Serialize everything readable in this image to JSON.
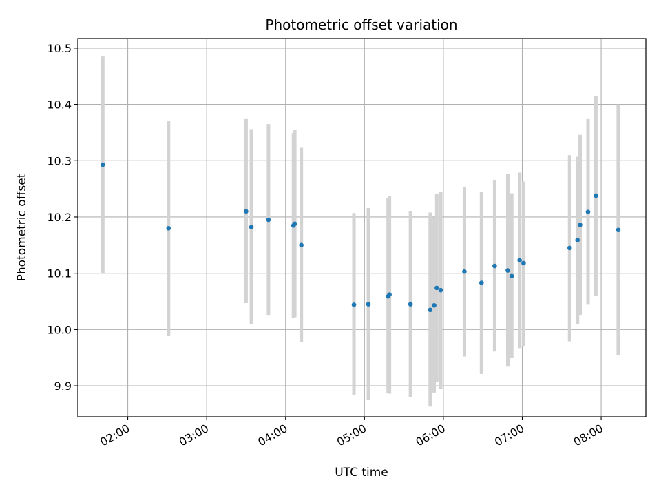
{
  "chart_data": {
    "type": "scatter",
    "title": "Photometric offset variation",
    "xlabel": "UTC time",
    "ylabel": "Photometric offset",
    "grid": true,
    "xlim": [
      "01:22",
      "08:34"
    ],
    "ylim": [
      9.845,
      10.517
    ],
    "x_ticks": [
      "02:00",
      "03:00",
      "04:00",
      "05:00",
      "06:00",
      "07:00",
      "08:00"
    ],
    "y_ticks": [
      9.9,
      10.0,
      10.1,
      10.2,
      10.3,
      10.4,
      10.5
    ],
    "y_tick_labels": [
      "9.9",
      "10.0",
      "10.1",
      "10.2",
      "10.3",
      "10.4",
      "10.5"
    ],
    "marker_color": "#1f77b4",
    "errorbar_color": "#d3d3d3",
    "series": [
      {
        "points": [
          {
            "x": "01:41",
            "y": 10.293,
            "ylo": 10.1,
            "yhi": 10.485
          },
          {
            "x": "02:31",
            "y": 10.18,
            "ylo": 9.988,
            "yhi": 10.37
          },
          {
            "x": "03:30",
            "y": 10.21,
            "ylo": 10.047,
            "yhi": 10.374
          },
          {
            "x": "03:34",
            "y": 10.182,
            "ylo": 10.01,
            "yhi": 10.356
          },
          {
            "x": "03:47",
            "y": 10.195,
            "ylo": 10.026,
            "yhi": 10.365
          },
          {
            "x": "04:06",
            "y": 10.185,
            "ylo": 10.021,
            "yhi": 10.349
          },
          {
            "x": "04:07",
            "y": 10.188,
            "ylo": 10.022,
            "yhi": 10.355
          },
          {
            "x": "04:12",
            "y": 10.15,
            "ylo": 9.978,
            "yhi": 10.323
          },
          {
            "x": "04:52",
            "y": 10.044,
            "ylo": 9.883,
            "yhi": 10.207
          },
          {
            "x": "05:03",
            "y": 10.045,
            "ylo": 9.875,
            "yhi": 10.216
          },
          {
            "x": "05:18",
            "y": 10.059,
            "ylo": 9.887,
            "yhi": 10.233
          },
          {
            "x": "05:19",
            "y": 10.062,
            "ylo": 9.886,
            "yhi": 10.237
          },
          {
            "x": "05:35",
            "y": 10.045,
            "ylo": 9.88,
            "yhi": 10.211
          },
          {
            "x": "05:50",
            "y": 10.035,
            "ylo": 9.863,
            "yhi": 10.208
          },
          {
            "x": "05:53",
            "y": 10.043,
            "ylo": 9.888,
            "yhi": 10.199
          },
          {
            "x": "05:55",
            "y": 10.074,
            "ylo": 9.907,
            "yhi": 10.241
          },
          {
            "x": "05:58",
            "y": 10.07,
            "ylo": 9.895,
            "yhi": 10.245
          },
          {
            "x": "06:16",
            "y": 10.103,
            "ylo": 9.952,
            "yhi": 10.254
          },
          {
            "x": "06:29",
            "y": 10.083,
            "ylo": 9.921,
            "yhi": 10.245
          },
          {
            "x": "06:39",
            "y": 10.113,
            "ylo": 9.961,
            "yhi": 10.265
          },
          {
            "x": "06:49",
            "y": 10.105,
            "ylo": 9.934,
            "yhi": 10.277
          },
          {
            "x": "06:52",
            "y": 10.095,
            "ylo": 9.949,
            "yhi": 10.242
          },
          {
            "x": "06:58",
            "y": 10.123,
            "ylo": 9.967,
            "yhi": 10.279
          },
          {
            "x": "07:01",
            "y": 10.118,
            "ylo": 9.971,
            "yhi": 10.263
          },
          {
            "x": "07:36",
            "y": 10.145,
            "ylo": 9.979,
            "yhi": 10.31
          },
          {
            "x": "07:42",
            "y": 10.159,
            "ylo": 10.01,
            "yhi": 10.307
          },
          {
            "x": "07:44",
            "y": 10.186,
            "ylo": 10.026,
            "yhi": 10.346
          },
          {
            "x": "07:50",
            "y": 10.209,
            "ylo": 10.044,
            "yhi": 10.374
          },
          {
            "x": "07:56",
            "y": 10.238,
            "ylo": 10.06,
            "yhi": 10.415
          },
          {
            "x": "08:13",
            "y": 10.177,
            "ylo": 9.954,
            "yhi": 10.4
          }
        ]
      }
    ]
  }
}
